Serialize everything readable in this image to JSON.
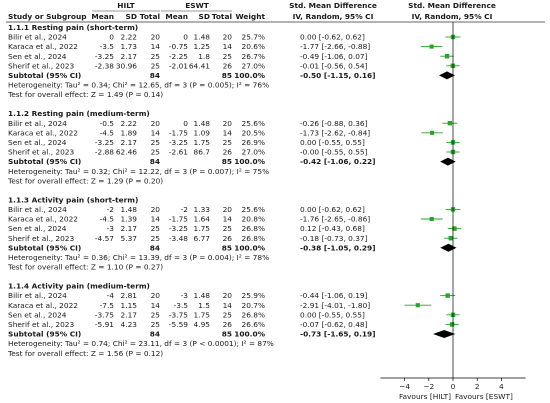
{
  "header": {
    "group1": "HILT",
    "group2": "ESWT",
    "study_col": "Study or Subgroup",
    "mean_label": "Mean",
    "sd_label": "SD",
    "total_label": "Total",
    "weight_label": "Weight",
    "effect_title": "Std. Mean Difference",
    "effect_method": "IV, Random, 95% CI",
    "plot_title": "Std. Mean Difference",
    "plot_method": "IV, Random, 95% CI"
  },
  "chart_data": {
    "type": "forest",
    "x_axis": {
      "min": -6,
      "max": 6,
      "ticks": [
        -4,
        -2,
        0,
        2,
        4
      ],
      "left_label": "Favours [HILT]",
      "right_label": "Favours [ESWT]"
    },
    "subgroups": [
      {
        "title": "1.1.1 Resting pain (short-term)",
        "studies": [
          {
            "name": "Bilir et al., 2024",
            "m1": "0",
            "sd1": "2.22",
            "n1": "20",
            "m2": "0",
            "sd2": "1.48",
            "n2": "20",
            "weight": "25.7%",
            "ci": "0.00 [-0.62, 0.62]",
            "est": 0.0,
            "lo": -0.62,
            "hi": 0.62,
            "w": 25.7
          },
          {
            "name": "Karaca et al., 2022",
            "m1": "-3.5",
            "sd1": "1.73",
            "n1": "14",
            "m2": "-0.75",
            "sd2": "1.25",
            "n2": "14",
            "weight": "20.6%",
            "ci": "-1.77 [-2.66, -0.88]",
            "est": -1.77,
            "lo": -2.66,
            "hi": -0.88,
            "w": 20.6
          },
          {
            "name": "Sen et al., 2024",
            "m1": "-3.25",
            "sd1": "2.17",
            "n1": "25",
            "m2": "-2.25",
            "sd2": "1.8",
            "n2": "25",
            "weight": "26.7%",
            "ci": "-0.49 [-1.06, 0.07]",
            "est": -0.49,
            "lo": -1.06,
            "hi": 0.07,
            "w": 26.7
          },
          {
            "name": "Sherif et al., 2023",
            "m1": "-2.38",
            "sd1": "30.96",
            "n1": "25",
            "m2": "-2.01",
            "sd2": "64.41",
            "n2": "26",
            "weight": "27.0%",
            "ci": "-0.01 [-0.56, 0.54]",
            "est": -0.01,
            "lo": -0.56,
            "hi": 0.54,
            "w": 27.0
          }
        ],
        "subtotal": {
          "label": "Subtotal (95% CI)",
          "n1": "84",
          "n2": "85",
          "weight": "100.0%",
          "ci": "-0.50 [-1.15, 0.16]",
          "est": -0.5,
          "lo": -1.15,
          "hi": 0.16
        },
        "heterogeneity": "Heterogeneity: Tau² = 0.34; Chi² = 12.65, df = 3 (P = 0.005); I² = 76%",
        "overall": "Test for overall effect: Z = 1.49 (P = 0.14)"
      },
      {
        "title": "1.1.2 Resting pain (medium-term)",
        "studies": [
          {
            "name": "Bilir et al., 2024",
            "m1": "-0.5",
            "sd1": "2.22",
            "n1": "20",
            "m2": "0",
            "sd2": "1.48",
            "n2": "20",
            "weight": "25.6%",
            "ci": "-0.26 [-0.88, 0.36]",
            "est": -0.26,
            "lo": -0.88,
            "hi": 0.36,
            "w": 25.6
          },
          {
            "name": "Karaca et al., 2022",
            "m1": "-4.5",
            "sd1": "1.89",
            "n1": "14",
            "m2": "-1.75",
            "sd2": "1.09",
            "n2": "14",
            "weight": "20.5%",
            "ci": "-1.73 [-2.62, -0.84]",
            "est": -1.73,
            "lo": -2.62,
            "hi": -0.84,
            "w": 20.5
          },
          {
            "name": "Sen et al., 2024",
            "m1": "-3.25",
            "sd1": "2.17",
            "n1": "25",
            "m2": "-3.25",
            "sd2": "1.75",
            "n2": "25",
            "weight": "26.9%",
            "ci": "0.00 [-0.55, 0.55]",
            "est": 0.0,
            "lo": -0.55,
            "hi": 0.55,
            "w": 26.9
          },
          {
            "name": "Sherif et al., 2023",
            "m1": "-2.88",
            "sd1": "62.46",
            "n1": "25",
            "m2": "-2.61",
            "sd2": "86.7",
            "n2": "26",
            "weight": "27.0%",
            "ci": "-0.00 [-0.55, 0.55]",
            "est": 0.0,
            "lo": -0.55,
            "hi": 0.55,
            "w": 27.0
          }
        ],
        "subtotal": {
          "label": "Subtotal (95% CI)",
          "n1": "84",
          "n2": "85",
          "weight": "100.0%",
          "ci": "-0.42 [-1.06, 0.22]",
          "est": -0.42,
          "lo": -1.06,
          "hi": 0.22
        },
        "heterogeneity": "Heterogeneity: Tau² = 0.32; Chi² = 12.22, df = 3 (P = 0.007); I² = 75%",
        "overall": "Test for overall effect: Z = 1.29 (P = 0.20)"
      },
      {
        "title": "1.1.3 Activity pain (short-term)",
        "studies": [
          {
            "name": "Bilir et al., 2024",
            "m1": "-2",
            "sd1": "1.48",
            "n1": "20",
            "m2": "-2",
            "sd2": "1.33",
            "n2": "20",
            "weight": "25.6%",
            "ci": "0.00 [-0.62, 0.62]",
            "est": 0.0,
            "lo": -0.62,
            "hi": 0.62,
            "w": 25.6
          },
          {
            "name": "Karaca et al., 2022",
            "m1": "-4.5",
            "sd1": "1.39",
            "n1": "14",
            "m2": "-1.75",
            "sd2": "1.64",
            "n2": "14",
            "weight": "20.8%",
            "ci": "-1.76 [-2.65, -0.86]",
            "est": -1.76,
            "lo": -2.65,
            "hi": -0.86,
            "w": 20.8
          },
          {
            "name": "Sen et al., 2024",
            "m1": "-3",
            "sd1": "2.17",
            "n1": "25",
            "m2": "-3.25",
            "sd2": "1.75",
            "n2": "25",
            "weight": "26.8%",
            "ci": "0.12 [-0.43, 0.68]",
            "est": 0.12,
            "lo": -0.43,
            "hi": 0.68,
            "w": 26.8
          },
          {
            "name": "Sherif et al., 2023",
            "m1": "-4.57",
            "sd1": "5.37",
            "n1": "25",
            "m2": "-3.48",
            "sd2": "6.77",
            "n2": "26",
            "weight": "26.8%",
            "ci": "-0.18 [-0.73, 0.37]",
            "est": -0.18,
            "lo": -0.73,
            "hi": 0.37,
            "w": 26.8
          }
        ],
        "subtotal": {
          "label": "Subtotal (95% CI)",
          "n1": "84",
          "n2": "85",
          "weight": "100.0%",
          "ci": "-0.38 [-1.05, 0.29]",
          "est": -0.38,
          "lo": -1.05,
          "hi": 0.29
        },
        "heterogeneity": "Heterogeneity: Tau² = 0.36; Chi² = 13.39, df = 3 (P = 0.004); I² = 78%",
        "overall": "Test for overall effect: Z = 1.10 (P = 0.27)"
      },
      {
        "title": "1.1.4 Activity pain (medium-term)",
        "studies": [
          {
            "name": "Bilir et al., 2024",
            "m1": "-4",
            "sd1": "2.81",
            "n1": "20",
            "m2": "-3",
            "sd2": "1.48",
            "n2": "20",
            "weight": "25.9%",
            "ci": "-0.44 [-1.06, 0.19]",
            "est": -0.44,
            "lo": -1.06,
            "hi": 0.19,
            "w": 25.9
          },
          {
            "name": "Karaca et al., 2022",
            "m1": "-7.5",
            "sd1": "1.15",
            "n1": "14",
            "m2": "-3.5",
            "sd2": "1.5",
            "n2": "14",
            "weight": "20.7%",
            "ci": "-2.91 [-4.01, -1.80]",
            "est": -2.91,
            "lo": -4.01,
            "hi": -1.8,
            "w": 20.7
          },
          {
            "name": "Sen et al., 2024",
            "m1": "-3.75",
            "sd1": "2.17",
            "n1": "25",
            "m2": "-3.75",
            "sd2": "1.75",
            "n2": "25",
            "weight": "26.8%",
            "ci": "0.00 [-0.55, 0.55]",
            "est": 0.0,
            "lo": -0.55,
            "hi": 0.55,
            "w": 26.8
          },
          {
            "name": "Sherif et al., 2023",
            "m1": "-5.91",
            "sd1": "4.23",
            "n1": "25",
            "m2": "-5.59",
            "sd2": "4.95",
            "n2": "26",
            "weight": "26.6%",
            "ci": "-0.07 [-0.62, 0.48]",
            "est": -0.07,
            "lo": -0.62,
            "hi": 0.48,
            "w": 26.6
          }
        ],
        "subtotal": {
          "label": "Subtotal (95% CI)",
          "n1": "84",
          "n2": "85",
          "weight": "100.0%",
          "ci": "-0.73 [-1.65, 0.19]",
          "est": -0.73,
          "lo": -1.65,
          "hi": 0.19
        },
        "heterogeneity": "Heterogeneity: Tau² = 0.74; Chi² = 23.11, df = 3 (P < 0.0001); I² = 87%",
        "overall": "Test for overall effect: Z = 1.56 (P = 0.12)"
      }
    ],
    "colors": {
      "study_marker": "#2ca02c",
      "diamond": "#000000"
    }
  }
}
